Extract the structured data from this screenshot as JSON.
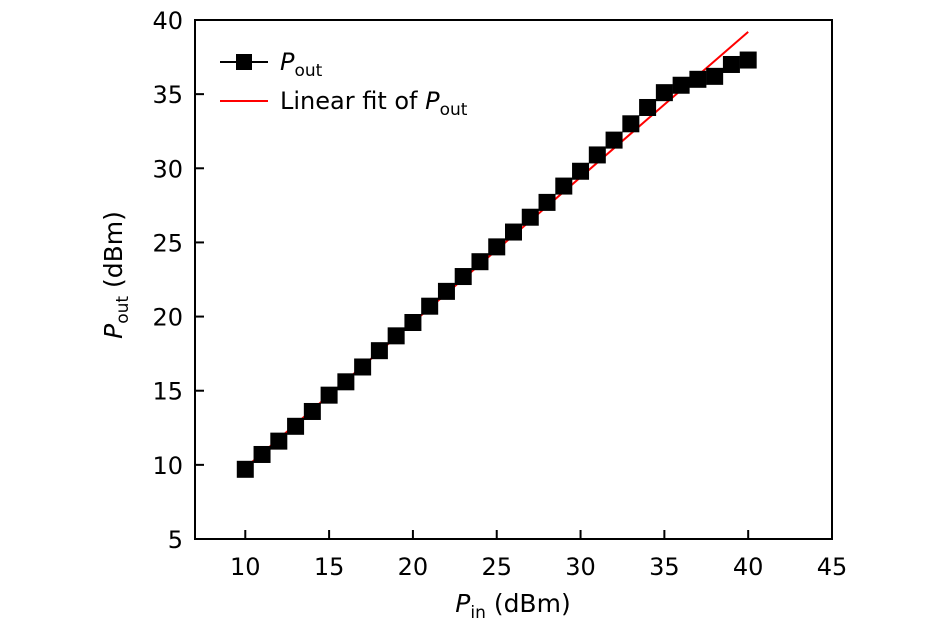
{
  "chart_data": {
    "type": "scatter",
    "title": "",
    "xlabel": {
      "symbol": "P",
      "subscript": "in",
      "unit": "(dBm)"
    },
    "ylabel": {
      "symbol": "P",
      "subscript": "out",
      "unit": "(dBm)"
    },
    "xlim": [
      7,
      45
    ],
    "ylim": [
      5,
      40
    ],
    "xticks": [
      10,
      15,
      20,
      25,
      30,
      35,
      40,
      45
    ],
    "yticks": [
      5,
      10,
      15,
      20,
      25,
      30,
      35,
      40
    ],
    "grid": false,
    "legend_position": "top-left",
    "series": [
      {
        "name": "Pout",
        "legend_symbol": "P",
        "legend_subscript": "out",
        "kind": "scatter-line-legend",
        "marker": "square",
        "color": "#000000",
        "x": [
          10,
          11,
          12,
          13,
          14,
          15,
          16,
          17,
          18,
          19,
          20,
          21,
          22,
          23,
          24,
          25,
          26,
          27,
          28,
          29,
          30,
          31,
          32,
          33,
          34,
          35,
          36,
          37,
          38,
          39,
          40
        ],
        "y": [
          9.7,
          10.7,
          11.6,
          12.6,
          13.6,
          14.7,
          15.6,
          16.6,
          17.7,
          18.7,
          19.6,
          20.7,
          21.7,
          22.7,
          23.7,
          24.7,
          25.7,
          26.7,
          27.7,
          28.8,
          29.8,
          30.9,
          31.9,
          33.0,
          34.1,
          35.1,
          35.6,
          36.0,
          36.2,
          37.0,
          37.3
        ]
      },
      {
        "name": "Linear fit of Pout",
        "legend_prefix": "Linear fit of ",
        "legend_symbol": "P",
        "legend_subscript": "out",
        "kind": "line",
        "color": "#ff0000",
        "x": [
          10,
          40
        ],
        "y": [
          9.8,
          39.2
        ]
      }
    ]
  }
}
